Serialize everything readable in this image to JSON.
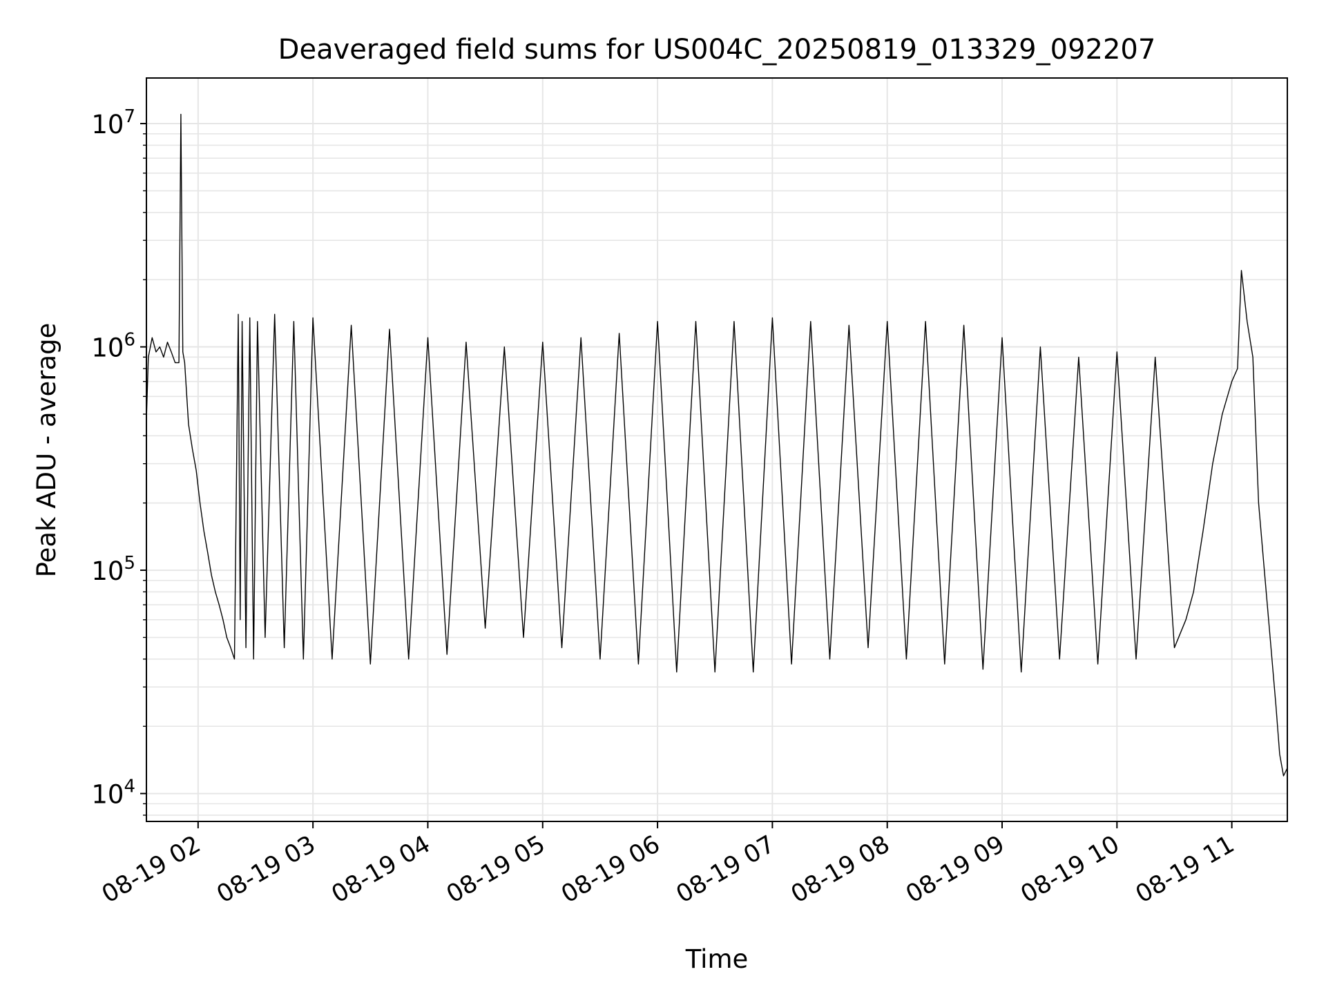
{
  "chart_data": {
    "type": "line",
    "title": "Deaveraged field sums for US004C_20250819_013329_092207",
    "xlabel": "Time",
    "ylabel": "Peak ADU - average",
    "yscale": "log",
    "xlim": [
      "08-19 01:33",
      "08-19 11:29"
    ],
    "ylim": [
      7500,
      16000000
    ],
    "grid": true,
    "line_color": "#000000",
    "grid_color": "#e6e6e6",
    "x_ticks": [
      "08-19 02",
      "08-19 03",
      "08-19 04",
      "08-19 05",
      "08-19 06",
      "08-19 07",
      "08-19 08",
      "08-19 09",
      "08-19 10",
      "08-19 11"
    ],
    "y_ticks": [
      {
        "value": 10000,
        "base": "10",
        "exp": "4"
      },
      {
        "value": 100000,
        "base": "10",
        "exp": "5"
      },
      {
        "value": 1000000,
        "base": "10",
        "exp": "6"
      },
      {
        "value": 10000000,
        "base": "10",
        "exp": "7"
      }
    ],
    "series": [
      {
        "x": [
          "08-19 01:33",
          "08-19 01:34",
          "08-19 01:36",
          "08-19 01:38",
          "08-19 01:40",
          "08-19 01:42",
          "08-19 01:44",
          "08-19 01:46",
          "08-19 01:48",
          "08-19 01:50",
          "08-19 01:51",
          "08-19 01:52",
          "08-19 01:53",
          "08-19 01:55",
          "08-19 01:57",
          "08-19 01:59",
          "08-19 02:01",
          "08-19 02:03",
          "08-19 02:05",
          "08-19 02:07",
          "08-19 02:09",
          "08-19 02:11",
          "08-19 02:13",
          "08-19 02:15",
          "08-19 02:17",
          "08-19 02:19",
          "08-19 02:21",
          "08-19 02:22",
          "08-19 02:23",
          "08-19 02:25",
          "08-19 02:27",
          "08-19 02:29",
          "08-19 02:31",
          "08-19 02:35",
          "08-19 02:40",
          "08-19 02:45",
          "08-19 02:50",
          "08-19 02:55",
          "08-19 03:00",
          "08-19 03:10",
          "08-19 03:20",
          "08-19 03:30",
          "08-19 03:40",
          "08-19 03:50",
          "08-19 04:00",
          "08-19 04:10",
          "08-19 04:20",
          "08-19 04:30",
          "08-19 04:40",
          "08-19 04:50",
          "08-19 05:00",
          "08-19 05:10",
          "08-19 05:20",
          "08-19 05:30",
          "08-19 05:40",
          "08-19 05:50",
          "08-19 06:00",
          "08-19 06:10",
          "08-19 06:20",
          "08-19 06:30",
          "08-19 06:40",
          "08-19 06:50",
          "08-19 07:00",
          "08-19 07:10",
          "08-19 07:20",
          "08-19 07:30",
          "08-19 07:40",
          "08-19 07:50",
          "08-19 08:00",
          "08-19 08:10",
          "08-19 08:20",
          "08-19 08:30",
          "08-19 08:40",
          "08-19 08:50",
          "08-19 09:00",
          "08-19 09:10",
          "08-19 09:20",
          "08-19 09:30",
          "08-19 09:40",
          "08-19 09:50",
          "08-19 10:00",
          "08-19 10:10",
          "08-19 10:20",
          "08-19 10:30",
          "08-19 10:36",
          "08-19 10:40",
          "08-19 10:45",
          "08-19 10:50",
          "08-19 10:55",
          "08-19 11:00",
          "08-19 11:03",
          "08-19 11:05",
          "08-19 11:08",
          "08-19 11:11",
          "08-19 11:14",
          "08-19 11:17",
          "08-19 11:20",
          "08-19 11:23",
          "08-19 11:25",
          "08-19 11:27",
          "08-19 11:29"
        ],
        "y": [
          470000,
          900000,
          1100000,
          950000,
          1000000,
          900000,
          1050000,
          950000,
          850000,
          850000,
          11000000,
          950000,
          850000,
          450000,
          350000,
          280000,
          200000,
          150000,
          120000,
          95000,
          80000,
          70000,
          60000,
          50000,
          45000,
          40000,
          1400000,
          60000,
          1300000,
          45000,
          1350000,
          40000,
          1300000,
          50000,
          1400000,
          45000,
          1300000,
          40000,
          1350000,
          40000,
          1250000,
          38000,
          1200000,
          40000,
          1100000,
          42000,
          1050000,
          55000,
          1000000,
          50000,
          1050000,
          45000,
          1100000,
          40000,
          1150000,
          38000,
          1300000,
          35000,
          1300000,
          35000,
          1300000,
          35000,
          1350000,
          38000,
          1300000,
          40000,
          1250000,
          45000,
          1300000,
          40000,
          1300000,
          38000,
          1250000,
          36000,
          1100000,
          35000,
          1000000,
          40000,
          900000,
          38000,
          950000,
          40000,
          900000,
          45000,
          60000,
          80000,
          150000,
          300000,
          500000,
          700000,
          800000,
          2200000,
          1300000,
          900000,
          200000,
          100000,
          50000,
          25000,
          15000,
          12000,
          13000
        ]
      }
    ]
  }
}
